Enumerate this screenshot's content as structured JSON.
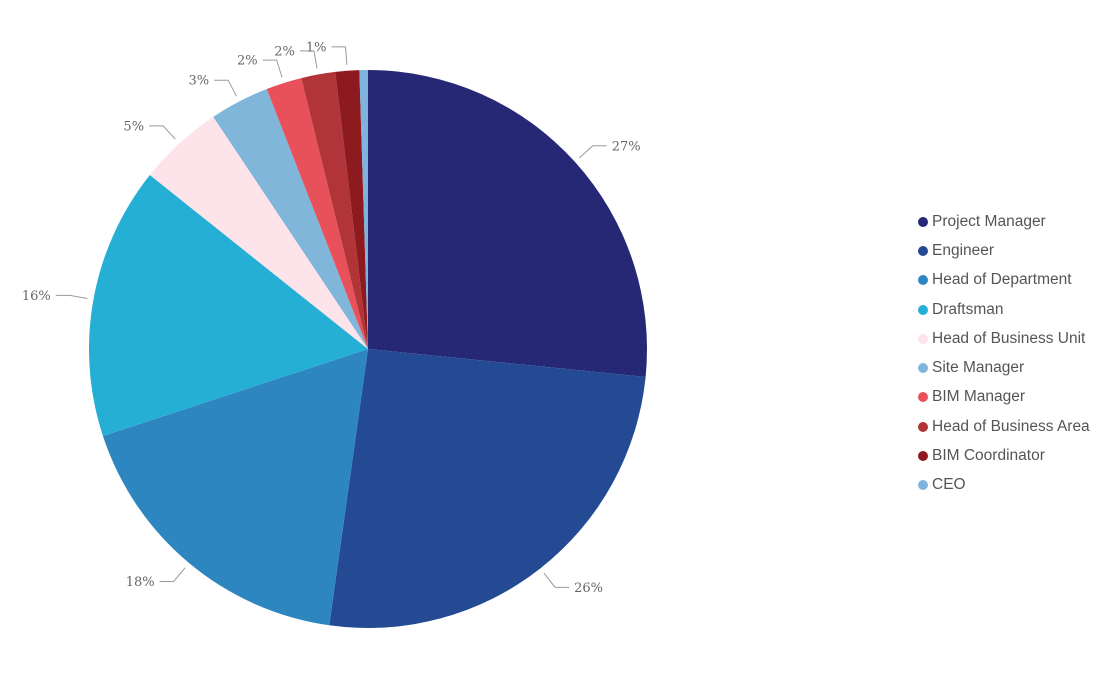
{
  "chart_data": {
    "type": "pie",
    "slices": [
      {
        "label": "Project Manager",
        "value": 27,
        "display": "27%",
        "color": "#262876"
      },
      {
        "label": "Engineer",
        "value": 26,
        "display": "26%",
        "color": "#244A93"
      },
      {
        "label": "Head of Department",
        "value": 18,
        "display": "18%",
        "color": "#2E86C1"
      },
      {
        "label": "Draftsman",
        "value": 16,
        "display": "16%",
        "color": "#26AFD4"
      },
      {
        "label": "Head of Business Unit",
        "value": 5,
        "display": "5%",
        "color": "#FDE4EA"
      },
      {
        "label": "Site Manager",
        "value": 3.5,
        "display": "3%",
        "color": "#80B6DA"
      },
      {
        "label": "BIM Manager",
        "value": 2.1,
        "display": "2%",
        "color": "#E8515A"
      },
      {
        "label": "Head of Business Area",
        "value": 2,
        "display": "2%",
        "color": "#B13538"
      },
      {
        "label": "BIM Coordinator",
        "value": 1.4,
        "display": "1%",
        "color": "#8C1A1E"
      },
      {
        "label": "CEO",
        "value": 0.5,
        "display": "",
        "color": "#7FB3DE"
      }
    ],
    "legend_position": "right",
    "title": ""
  }
}
